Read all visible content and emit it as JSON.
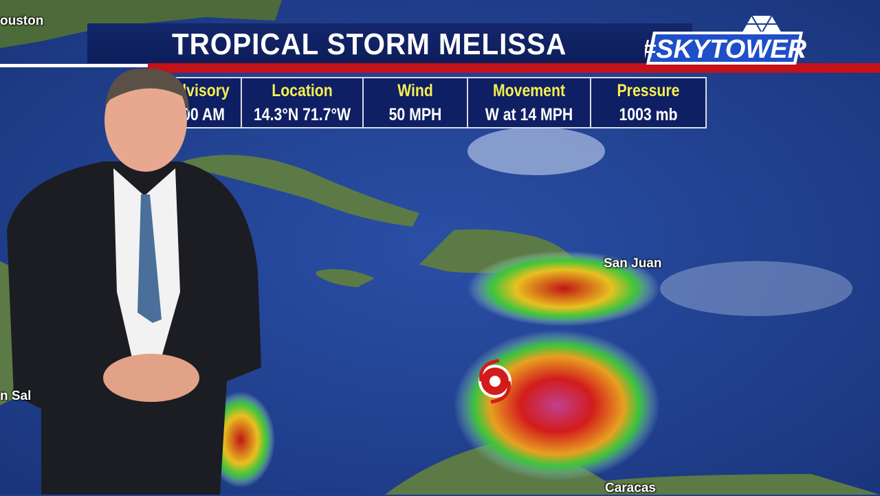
{
  "title": "TROPICAL STORM MELISSA",
  "logo_text": "#SkyTower",
  "info_table": [
    {
      "header": "dvisory",
      "value": "00 AM"
    },
    {
      "header": "Location",
      "value": "14.3°N  71.7°W"
    },
    {
      "header": "Wind",
      "value": "50 MPH"
    },
    {
      "header": "Movement",
      "value": "W at 14 MPH"
    },
    {
      "header": "Pressure",
      "value": "1003 mb"
    }
  ],
  "map_labels": {
    "houston": "ouston",
    "san_juan": "San Juan",
    "caracas": "Caracas",
    "san_salvador": "n Sal"
  },
  "storm_icon": "tropical-storm-icon",
  "colors": {
    "ocean": "#1f3f8f",
    "banner": "#13276b",
    "accent_red": "#c4121a",
    "header_yellow": "#f6ef52"
  }
}
